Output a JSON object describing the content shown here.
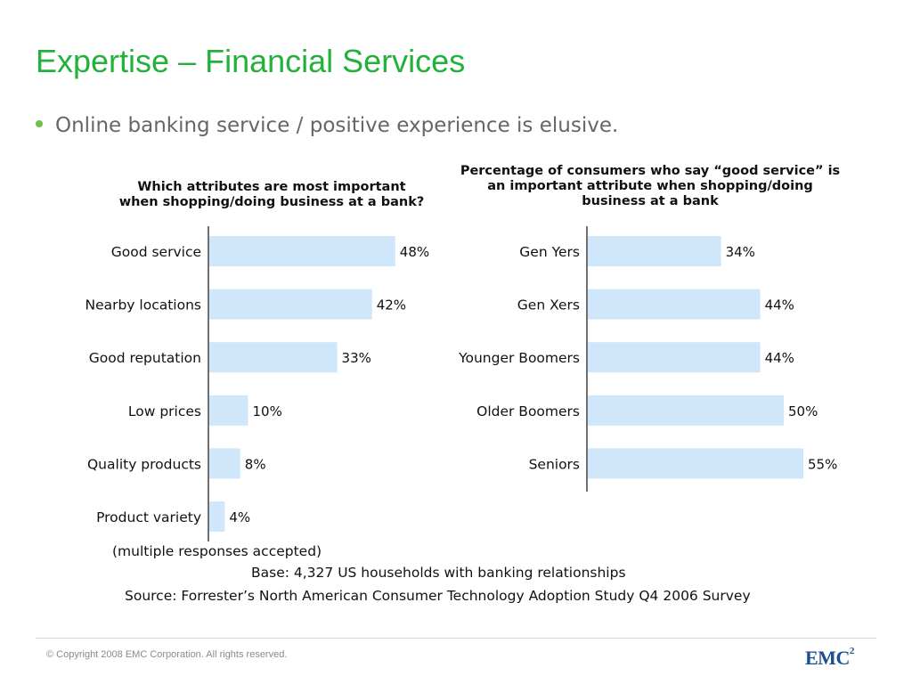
{
  "slide": {
    "title": "Expertise – Financial Services",
    "bullet": "Online banking service / positive experience is elusive."
  },
  "notes": {
    "multiple": "(multiple responses accepted)",
    "base": "Base: 4,327 US households with banking relationships",
    "source": "Source: Forrester’s North American Consumer Technology Adoption Study Q4 2006 Survey"
  },
  "footer": {
    "copyright": "© Copyright 2008 EMC Corporation. All rights reserved.",
    "logo_text": "EMC",
    "logo_sup": "2"
  },
  "colors": {
    "title": "#22b13a",
    "bar": "#cfe6fb",
    "bullet": "#6cc24a",
    "logo": "#1c4f8f"
  },
  "chart_data": [
    {
      "type": "bar",
      "orientation": "horizontal",
      "title": "Which attributes are most important\nwhen shopping/doing business at a bank?",
      "categories": [
        "Good service",
        "Nearby locations",
        "Good reputation",
        "Low prices",
        "Quality products",
        "Product variety"
      ],
      "values": [
        48,
        42,
        33,
        10,
        8,
        4
      ],
      "value_suffix": "%",
      "xlim": [
        0,
        100
      ]
    },
    {
      "type": "bar",
      "orientation": "horizontal",
      "title": "Percentage of consumers who say “good service” is\nan important attribute when shopping/doing\nbusiness at a bank",
      "categories": [
        "Gen Yers",
        "Gen Xers",
        "Younger Boomers",
        "Older Boomers",
        "Seniors"
      ],
      "values": [
        34,
        44,
        44,
        50,
        55
      ],
      "value_suffix": "%",
      "xlim": [
        0,
        100
      ]
    }
  ]
}
